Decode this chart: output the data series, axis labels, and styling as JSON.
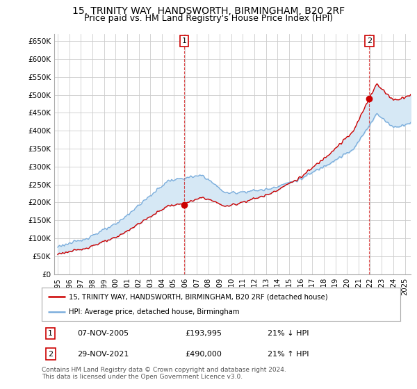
{
  "title": "15, TRINITY WAY, HANDSWORTH, BIRMINGHAM, B20 2RF",
  "subtitle": "Price paid vs. HM Land Registry's House Price Index (HPI)",
  "title_fontsize": 10,
  "subtitle_fontsize": 9,
  "ylim": [
    0,
    670000
  ],
  "yticks": [
    0,
    50000,
    100000,
    150000,
    200000,
    250000,
    300000,
    350000,
    400000,
    450000,
    500000,
    550000,
    600000,
    650000
  ],
  "ytick_labels": [
    "£0",
    "£50K",
    "£100K",
    "£150K",
    "£200K",
    "£250K",
    "£300K",
    "£350K",
    "£400K",
    "£450K",
    "£500K",
    "£550K",
    "£600K",
    "£650K"
  ],
  "hpi_color": "#7aaddc",
  "price_color": "#cc0000",
  "fill_color": "#d6e8f5",
  "marker1_year": 2005.92,
  "marker1_price": 193995,
  "marker2_year": 2021.92,
  "marker2_price": 490000,
  "marker1_label": "07-NOV-2005",
  "marker1_value": "£193,995",
  "marker1_hpi": "21% ↓ HPI",
  "marker2_label": "29-NOV-2021",
  "marker2_value": "£490,000",
  "marker2_hpi": "21% ↑ HPI",
  "legend_line1": "15, TRINITY WAY, HANDSWORTH, BIRMINGHAM, B20 2RF (detached house)",
  "legend_line2": "HPI: Average price, detached house, Birmingham",
  "footnote": "Contains HM Land Registry data © Crown copyright and database right 2024.\nThis data is licensed under the Open Government Licence v3.0.",
  "background_color": "#ffffff",
  "grid_color": "#cccccc"
}
